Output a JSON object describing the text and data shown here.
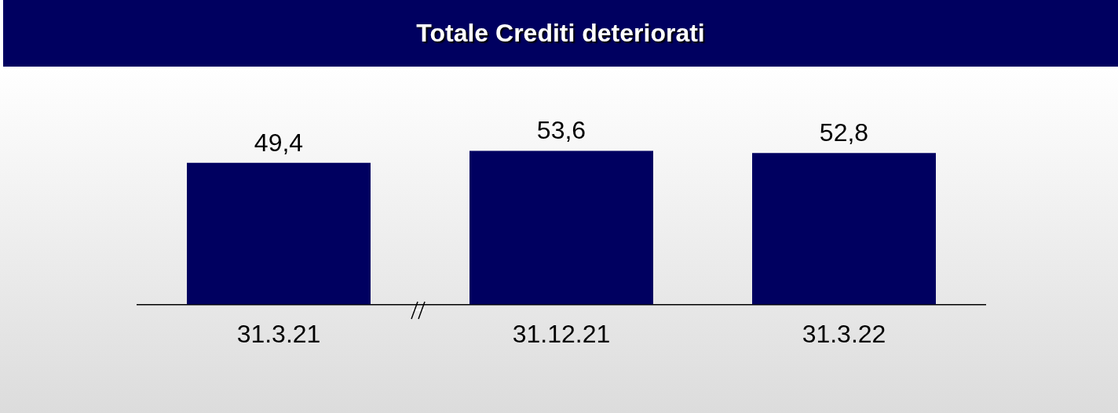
{
  "chart_data": {
    "type": "bar",
    "title": "Totale Crediti deteriorati",
    "categories": [
      "31.3.21",
      "31.12.21",
      "31.3.22"
    ],
    "values": [
      49.4,
      53.6,
      52.8
    ],
    "value_labels": [
      "49,4",
      "53,6",
      "52,8"
    ],
    "color": "#000060",
    "tick_labels": "x",
    "grid": false,
    "legend": false
  }
}
